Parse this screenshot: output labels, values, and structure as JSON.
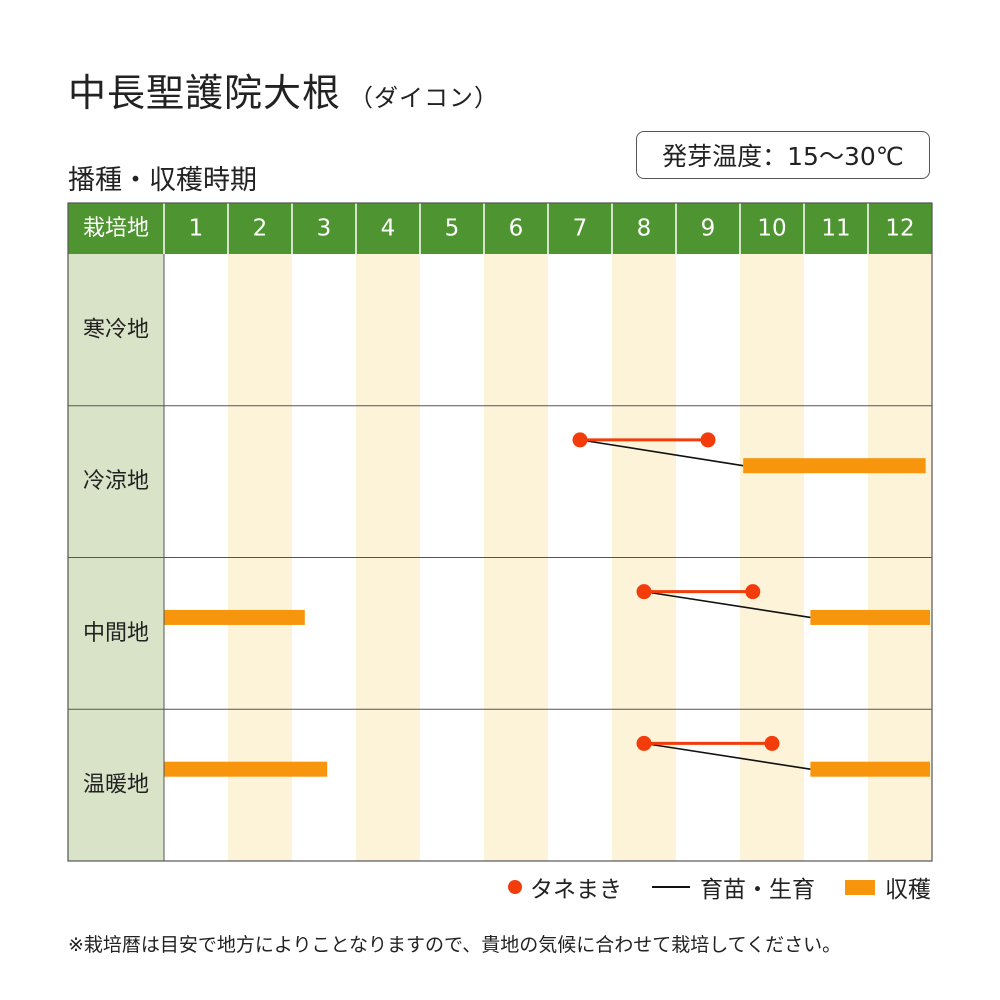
{
  "title": "中長聖護院大根",
  "title_sub": "（ダイコン）",
  "subtitle": "播種・収穫時期",
  "temperature": "発芽温度：15～30℃",
  "colors": {
    "header_green": "#4e9531",
    "region_bg": "#d9e3c8",
    "stripe": "#fcf3d8",
    "sowing": "#f23c0b",
    "harvest": "#f7950c",
    "nursery": "#111111"
  },
  "chart_data": {
    "type": "gantt",
    "region_header": "栽培地",
    "months": [
      "1",
      "2",
      "3",
      "4",
      "5",
      "6",
      "7",
      "8",
      "9",
      "10",
      "11",
      "12"
    ],
    "regions": [
      {
        "name": "寒冷地",
        "sowing": [],
        "nursery": [],
        "harvest": []
      },
      {
        "name": "冷涼地",
        "sowing": [
          {
            "start": 7.5,
            "end": 9.5
          }
        ],
        "nursery": [
          {
            "start": 7.5,
            "end": 10.05
          }
        ],
        "harvest": [
          {
            "start": 10.05,
            "end": 12.9
          }
        ]
      },
      {
        "name": "中間地",
        "sowing": [
          {
            "start": 8.5,
            "end": 10.2
          }
        ],
        "nursery": [
          {
            "start": 8.5,
            "end": 11.1
          }
        ],
        "harvest": [
          {
            "start": 1.0,
            "end": 3.2
          },
          {
            "start": 11.1,
            "end": 13.0
          }
        ]
      },
      {
        "name": "温暖地",
        "sowing": [
          {
            "start": 8.5,
            "end": 10.5
          }
        ],
        "nursery": [
          {
            "start": 8.5,
            "end": 11.1
          }
        ],
        "harvest": [
          {
            "start": 1.0,
            "end": 3.55
          },
          {
            "start": 11.1,
            "end": 13.0
          }
        ]
      }
    ]
  },
  "legend": {
    "sowing": "タネまき",
    "nursery": "育苗・生育",
    "harvest": "収穫"
  },
  "note": "※栽培暦は目安で地方によりことなりますので、貴地の気候に合わせて栽培してください。"
}
